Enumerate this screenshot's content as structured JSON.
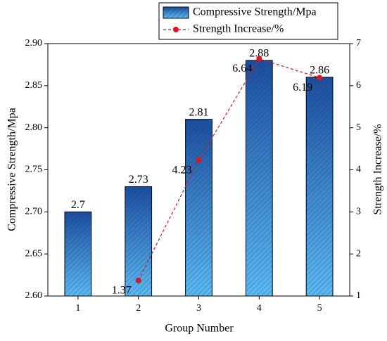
{
  "chart_data": {
    "type": "combo",
    "xlabel": "Group Number",
    "ylabel": "Compressive Strength/Mpa",
    "y2label": "Strength Increase/%",
    "categories": [
      "1",
      "2",
      "3",
      "4",
      "5"
    ],
    "series": [
      {
        "name": "Compressive Strength/Mpa",
        "type": "bar",
        "color": "#1f5fb4",
        "values": [
          2.7,
          2.73,
          2.81,
          2.88,
          2.86
        ]
      },
      {
        "name": "Strength Increase/%",
        "type": "line",
        "axis": "y2",
        "color": "#e0141e",
        "values": [
          null,
          1.37,
          4.23,
          6.64,
          6.19
        ]
      }
    ],
    "ylim": [
      2.6,
      2.9
    ],
    "yticks": [
      {
        "value": 2.6,
        "label": "2.60"
      },
      {
        "value": 2.65,
        "label": "2.65"
      },
      {
        "value": 2.7,
        "label": "2.70"
      },
      {
        "value": 2.75,
        "label": "2.75"
      },
      {
        "value": 2.8,
        "label": "2.80"
      },
      {
        "value": 2.85,
        "label": "2.85"
      },
      {
        "value": 2.9,
        "label": "2.90"
      }
    ],
    "y2lim": [
      1,
      7
    ],
    "y2ticks": [
      1,
      2,
      3,
      4,
      5,
      6,
      7
    ]
  }
}
